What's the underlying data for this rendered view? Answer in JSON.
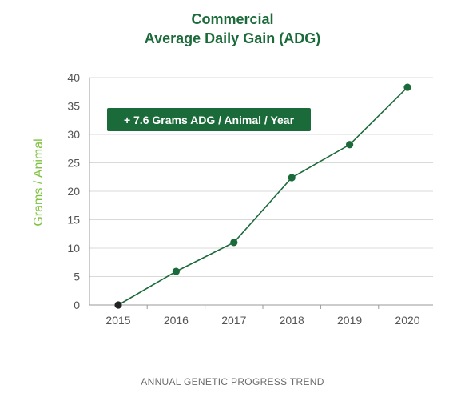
{
  "header": {
    "title_line1": "Commercial",
    "title_line2": "Average Daily Gain (ADG)"
  },
  "footer": {
    "caption": "ANNUAL GENETIC PROGRESS TREND"
  },
  "colors": {
    "line": "#1b6a3a",
    "marker": "#1b6a3a",
    "first_marker": "#222222",
    "ylabel": "#7fc241",
    "grid": "#d9d9d9",
    "axis": "#9a9a9a",
    "annotation_bg": "#1b6a3a",
    "annotation_text": "#ffffff",
    "tick_text": "#555555"
  },
  "chart_data": {
    "type": "line",
    "title": "Commercial Average Daily Gain (ADG)",
    "xlabel": "",
    "ylabel": "Grams / Animal",
    "categories": [
      "2015",
      "2016",
      "2017",
      "2018",
      "2019",
      "2020"
    ],
    "series": [
      {
        "values": [
          0,
          5.9,
          11.0,
          22.4,
          28.2,
          38.3
        ]
      }
    ],
    "ylim": [
      0,
      40
    ],
    "yticks": [
      0,
      5,
      10,
      15,
      20,
      25,
      30,
      35,
      40
    ],
    "grid": "horizontal",
    "annotation": "+ 7.6 Grams ADG / Animal / Year"
  }
}
